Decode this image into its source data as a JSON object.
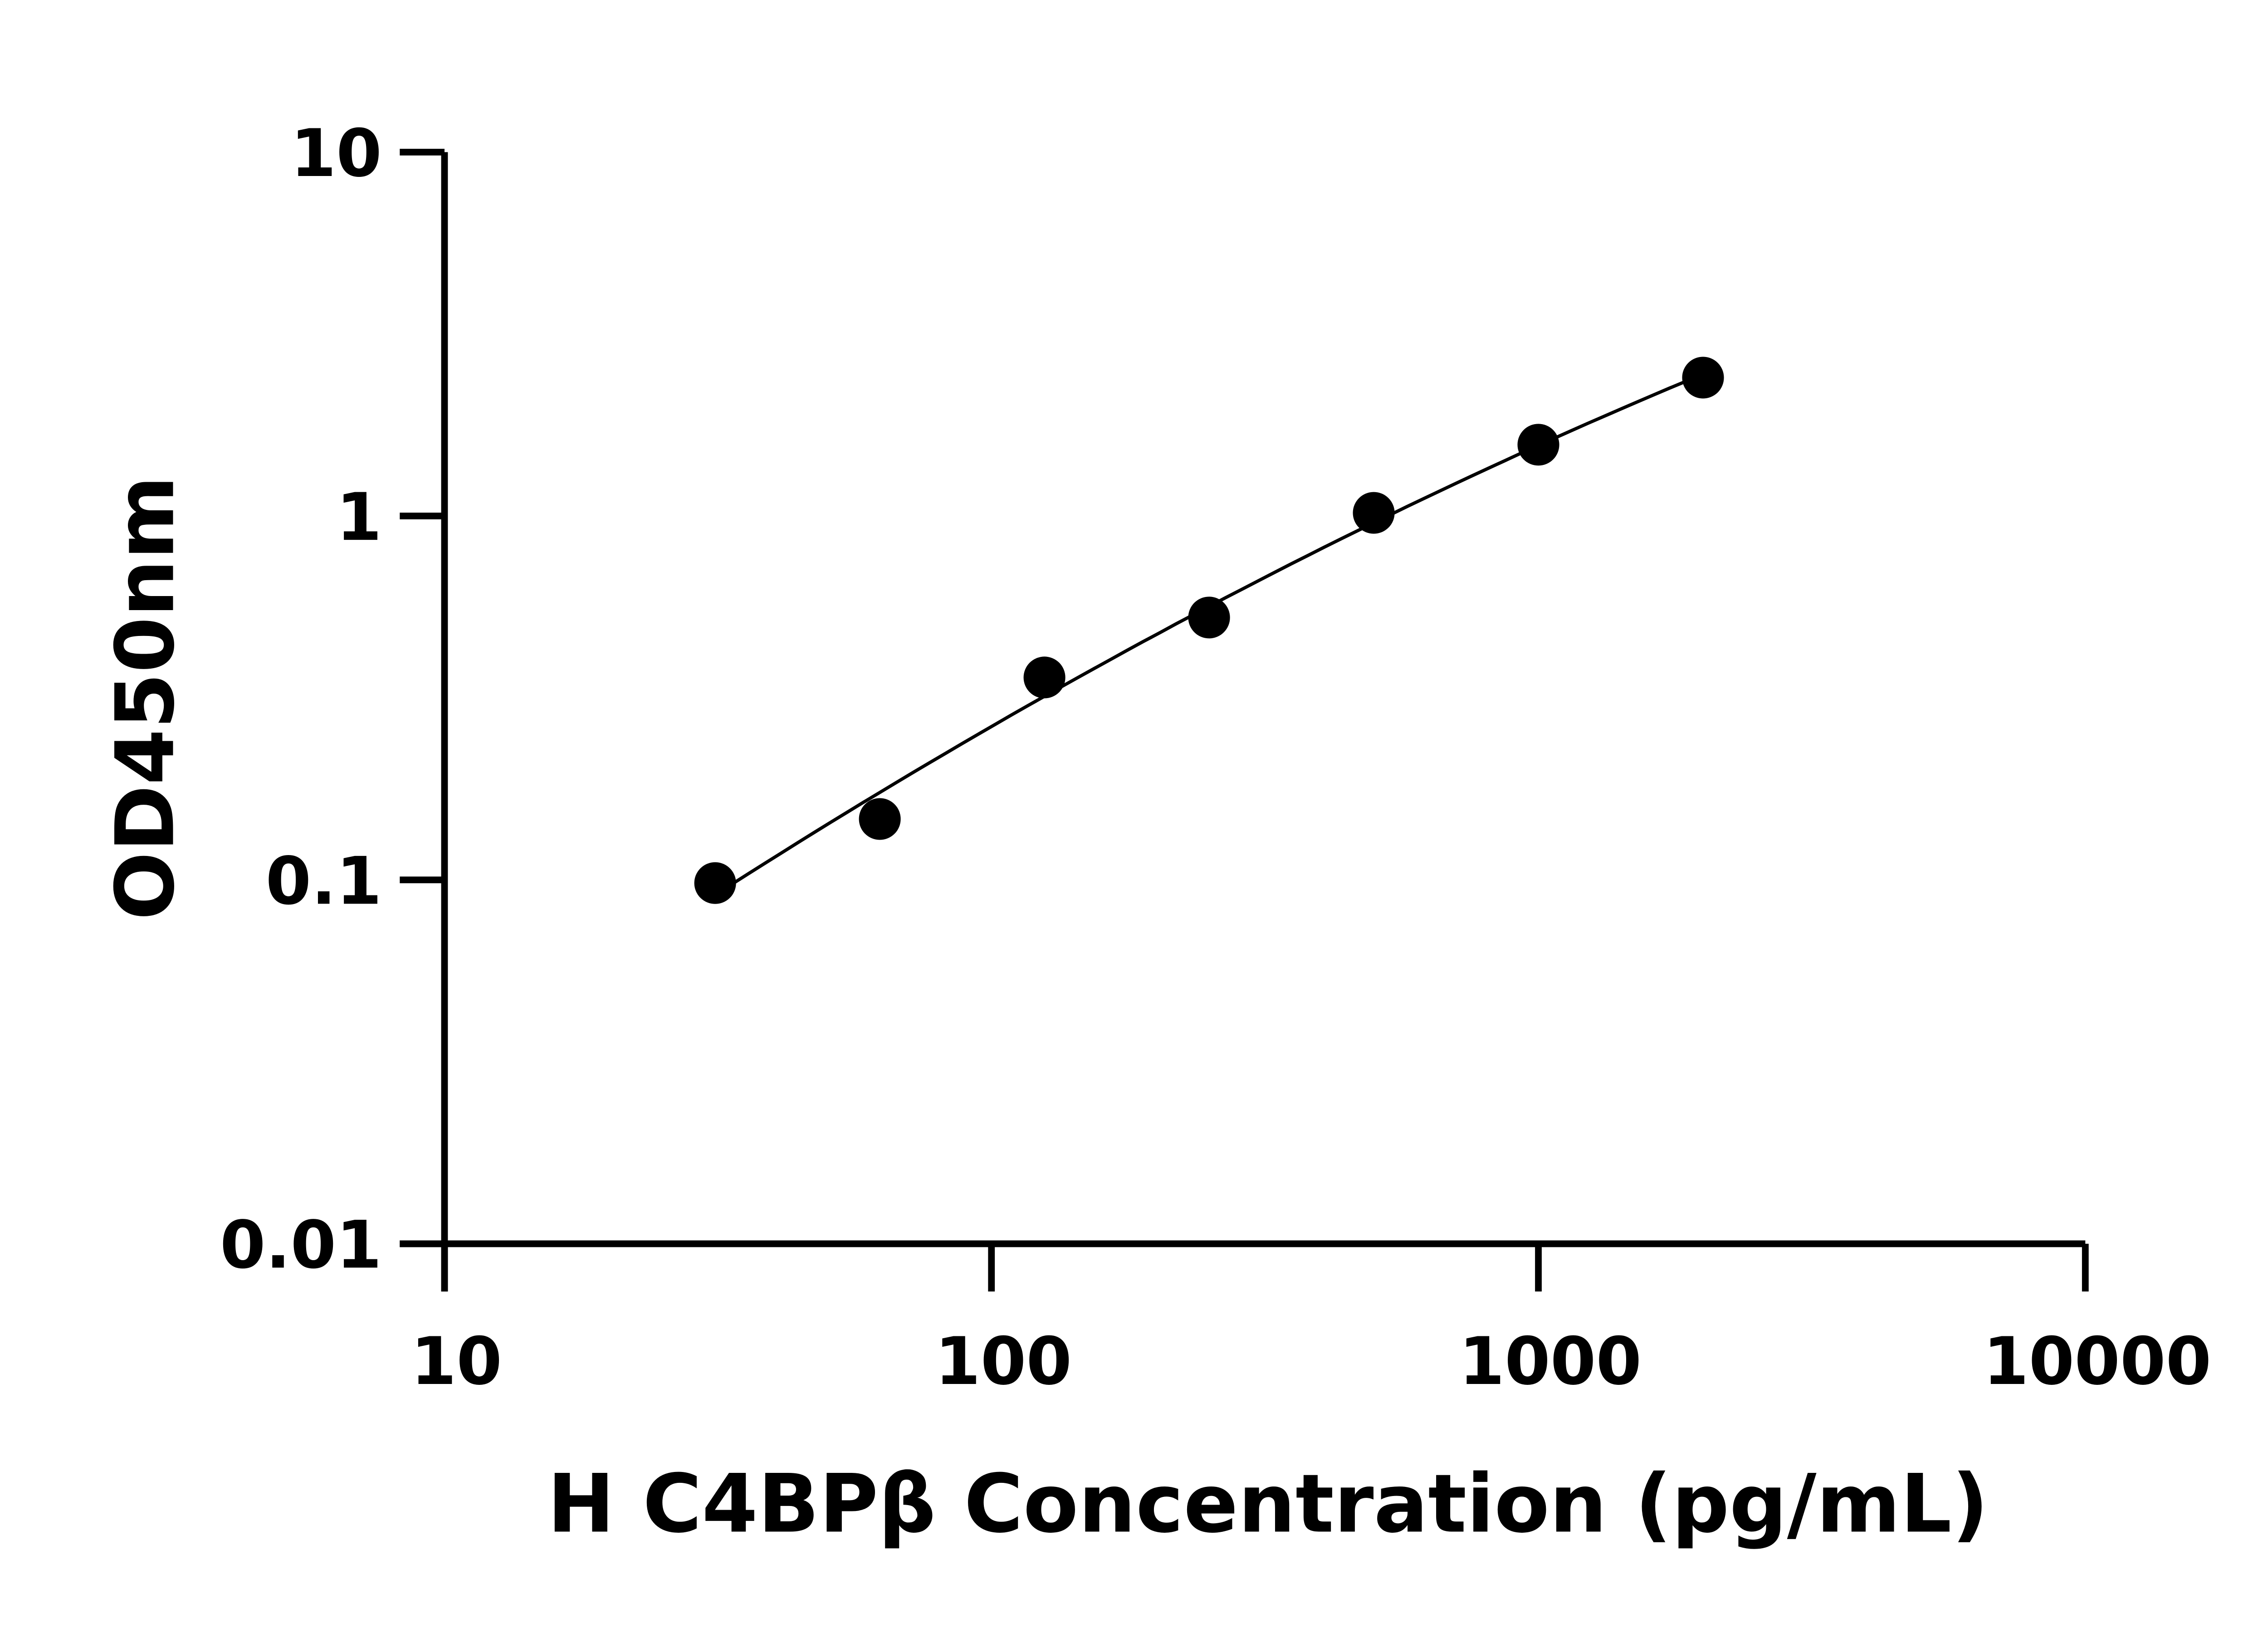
{
  "chart_data": {
    "type": "scatter",
    "title": "",
    "xlabel": "H C4BPβ Concentration (pg/mL)",
    "ylabel": "OD450nm",
    "xscale": "log",
    "yscale": "log",
    "xlim": [
      10,
      10000
    ],
    "ylim": [
      0.01,
      10
    ],
    "xticks": [
      "10",
      "100",
      "1000",
      "10000"
    ],
    "yticks": [
      "0.01",
      "0.1",
      "1",
      "10"
    ],
    "grid": false,
    "fit_line": true,
    "x": [
      31.25,
      62.5,
      125,
      250,
      500,
      1000,
      2000
    ],
    "y": [
      0.098,
      0.147,
      0.36,
      0.526,
      1.02,
      1.57,
      2.4
    ],
    "colors": {
      "points": "#000000",
      "line": "#000000",
      "axes": "#000000"
    }
  }
}
